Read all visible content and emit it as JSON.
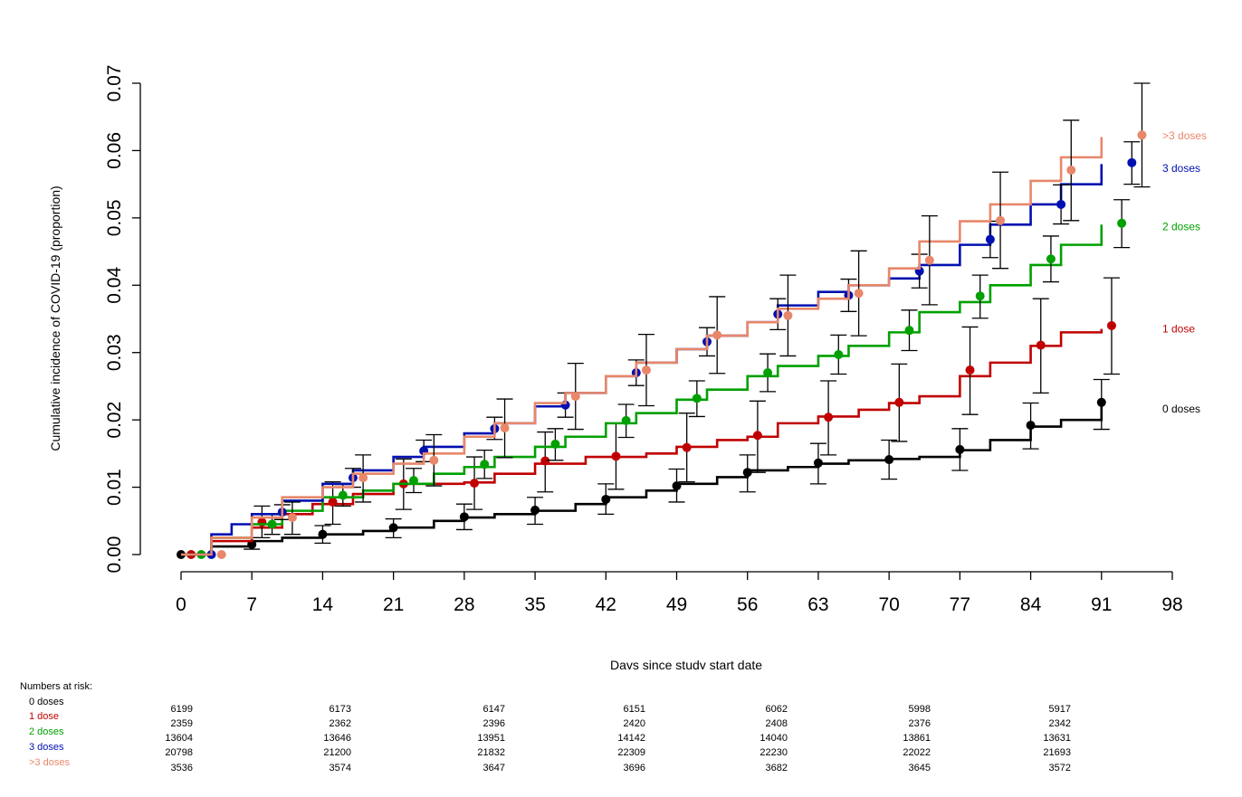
{
  "chart_data": {
    "type": "line",
    "title": "",
    "xlabel": "Days since study start date",
    "ylabel": "Cumulative incidence of COVID-19 (proportion)",
    "xlim": [
      0,
      98
    ],
    "ylim": [
      0,
      0.07
    ],
    "x_ticks": [
      "0",
      "7",
      "14",
      "21",
      "28",
      "35",
      "42",
      "49",
      "56",
      "63",
      "70",
      "77",
      "84",
      "91",
      "98"
    ],
    "y_ticks": [
      "0.00",
      "0.01",
      "0.02",
      "0.03",
      "0.04",
      "0.05",
      "0.06",
      "0.07"
    ],
    "grid": false,
    "legend_placement": "right (labels at line ends)",
    "series": [
      {
        "name": "0 doses",
        "color": "#000000",
        "line": [
          [
            0,
            0
          ],
          [
            3,
            0.0012
          ],
          [
            7,
            0.002
          ],
          [
            10,
            0.0025
          ],
          [
            14,
            0.003
          ],
          [
            18,
            0.0035
          ],
          [
            21,
            0.004
          ],
          [
            25,
            0.005
          ],
          [
            28,
            0.0055
          ],
          [
            31,
            0.006
          ],
          [
            35,
            0.0065
          ],
          [
            39,
            0.0075
          ],
          [
            42,
            0.0085
          ],
          [
            46,
            0.0095
          ],
          [
            49,
            0.0105
          ],
          [
            53,
            0.0115
          ],
          [
            56,
            0.0125
          ],
          [
            60,
            0.013
          ],
          [
            63,
            0.0135
          ],
          [
            66,
            0.014
          ],
          [
            70,
            0.0142
          ],
          [
            73,
            0.0145
          ],
          [
            77,
            0.0155
          ],
          [
            80,
            0.017
          ],
          [
            84,
            0.019
          ],
          [
            87,
            0.02
          ],
          [
            91,
            0.022
          ]
        ],
        "points": [
          {
            "x": 0,
            "y": 0
          },
          {
            "x": 7,
            "y": 0.0015,
            "lo": 0.0008,
            "hi": 0.0025
          },
          {
            "x": 14,
            "y": 0.003,
            "lo": 0.0017,
            "hi": 0.0043
          },
          {
            "x": 21,
            "y": 0.004,
            "lo": 0.0025,
            "hi": 0.0053
          },
          {
            "x": 28,
            "y": 0.0056,
            "lo": 0.0037,
            "hi": 0.0075
          },
          {
            "x": 35,
            "y": 0.0066,
            "lo": 0.0045,
            "hi": 0.0085
          },
          {
            "x": 42,
            "y": 0.0082,
            "lo": 0.006,
            "hi": 0.0105
          },
          {
            "x": 49,
            "y": 0.0102,
            "lo": 0.0078,
            "hi": 0.0127
          },
          {
            "x": 56,
            "y": 0.0122,
            "lo": 0.0093,
            "hi": 0.0148
          },
          {
            "x": 63,
            "y": 0.0136,
            "lo": 0.0105,
            "hi": 0.0165
          },
          {
            "x": 70,
            "y": 0.0141,
            "lo": 0.0112,
            "hi": 0.017
          },
          {
            "x": 77,
            "y": 0.0156,
            "lo": 0.0125,
            "hi": 0.0187
          },
          {
            "x": 84,
            "y": 0.0192,
            "lo": 0.0157,
            "hi": 0.0225
          },
          {
            "x": 91,
            "y": 0.0226,
            "lo": 0.0186,
            "hi": 0.026
          }
        ]
      },
      {
        "name": "1 dose",
        "color": "#c00000",
        "line": [
          [
            0,
            0
          ],
          [
            3,
            0.002
          ],
          [
            7,
            0.004
          ],
          [
            10,
            0.006
          ],
          [
            13,
            0.0075
          ],
          [
            17,
            0.009
          ],
          [
            21,
            0.0105
          ],
          [
            28,
            0.0107
          ],
          [
            31,
            0.012
          ],
          [
            35,
            0.0135
          ],
          [
            40,
            0.0145
          ],
          [
            46,
            0.015
          ],
          [
            49,
            0.016
          ],
          [
            53,
            0.017
          ],
          [
            56,
            0.0175
          ],
          [
            59,
            0.0195
          ],
          [
            63,
            0.0205
          ],
          [
            67,
            0.0215
          ],
          [
            70,
            0.0225
          ],
          [
            73,
            0.0235
          ],
          [
            77,
            0.0265
          ],
          [
            80,
            0.0285
          ],
          [
            84,
            0.031
          ],
          [
            87,
            0.033
          ],
          [
            91,
            0.0335
          ]
        ],
        "points": [
          {
            "x": 1,
            "y": 0
          },
          {
            "x": 8,
            "y": 0.0048,
            "lo": 0.0025,
            "hi": 0.0072
          },
          {
            "x": 15,
            "y": 0.0078,
            "lo": 0.0045,
            "hi": 0.0108
          },
          {
            "x": 22,
            "y": 0.0105,
            "lo": 0.0067,
            "hi": 0.0142
          },
          {
            "x": 29,
            "y": 0.0106,
            "lo": 0.0067,
            "hi": 0.0145
          },
          {
            "x": 36,
            "y": 0.0139,
            "lo": 0.0093,
            "hi": 0.0182
          },
          {
            "x": 43,
            "y": 0.0146,
            "lo": 0.0097,
            "hi": 0.0195
          },
          {
            "x": 50,
            "y": 0.0159,
            "lo": 0.0108,
            "hi": 0.021
          },
          {
            "x": 57,
            "y": 0.0177,
            "lo": 0.0122,
            "hi": 0.0228
          },
          {
            "x": 64,
            "y": 0.0204,
            "lo": 0.0148,
            "hi": 0.0258
          },
          {
            "x": 71,
            "y": 0.0226,
            "lo": 0.0168,
            "hi": 0.0283
          },
          {
            "x": 78,
            "y": 0.0274,
            "lo": 0.0208,
            "hi": 0.0338
          },
          {
            "x": 85,
            "y": 0.0311,
            "lo": 0.024,
            "hi": 0.038
          },
          {
            "x": 92,
            "y": 0.034,
            "lo": 0.0268,
            "hi": 0.0411
          }
        ]
      },
      {
        "name": "2 doses",
        "color": "#00a000",
        "line": [
          [
            0,
            0
          ],
          [
            3,
            0.0025
          ],
          [
            7,
            0.0045
          ],
          [
            10,
            0.0065
          ],
          [
            14,
            0.0085
          ],
          [
            18,
            0.0095
          ],
          [
            21,
            0.0105
          ],
          [
            25,
            0.012
          ],
          [
            28,
            0.013
          ],
          [
            31,
            0.0145
          ],
          [
            35,
            0.016
          ],
          [
            38,
            0.0175
          ],
          [
            42,
            0.0195
          ],
          [
            45,
            0.021
          ],
          [
            49,
            0.023
          ],
          [
            52,
            0.0245
          ],
          [
            56,
            0.0265
          ],
          [
            59,
            0.028
          ],
          [
            63,
            0.0295
          ],
          [
            66,
            0.031
          ],
          [
            70,
            0.033
          ],
          [
            73,
            0.036
          ],
          [
            77,
            0.0375
          ],
          [
            80,
            0.04
          ],
          [
            84,
            0.043
          ],
          [
            87,
            0.046
          ],
          [
            91,
            0.049
          ]
        ],
        "points": [
          {
            "x": 2,
            "y": 0
          },
          {
            "x": 9,
            "y": 0.0045,
            "lo": 0.003,
            "hi": 0.006
          },
          {
            "x": 16,
            "y": 0.0088,
            "lo": 0.0072,
            "hi": 0.0104
          },
          {
            "x": 23,
            "y": 0.011,
            "lo": 0.0092,
            "hi": 0.0128
          },
          {
            "x": 30,
            "y": 0.0134,
            "lo": 0.0113,
            "hi": 0.0155
          },
          {
            "x": 37,
            "y": 0.0164,
            "lo": 0.014,
            "hi": 0.0187
          },
          {
            "x": 44,
            "y": 0.0199,
            "lo": 0.0174,
            "hi": 0.0223
          },
          {
            "x": 51,
            "y": 0.0232,
            "lo": 0.0205,
            "hi": 0.0258
          },
          {
            "x": 58,
            "y": 0.027,
            "lo": 0.0242,
            "hi": 0.0298
          },
          {
            "x": 65,
            "y": 0.0297,
            "lo": 0.0268,
            "hi": 0.0326
          },
          {
            "x": 72,
            "y": 0.0333,
            "lo": 0.0303,
            "hi": 0.0363
          },
          {
            "x": 79,
            "y": 0.0384,
            "lo": 0.0351,
            "hi": 0.0415
          },
          {
            "x": 86,
            "y": 0.0439,
            "lo": 0.0405,
            "hi": 0.0473
          },
          {
            "x": 93,
            "y": 0.0492,
            "lo": 0.0456,
            "hi": 0.0527
          }
        ]
      },
      {
        "name": "3 doses",
        "color": "#0010b0",
        "line": [
          [
            0,
            0
          ],
          [
            3,
            0.003
          ],
          [
            5,
            0.0045
          ],
          [
            7,
            0.006
          ],
          [
            10,
            0.008
          ],
          [
            14,
            0.0105
          ],
          [
            17,
            0.0125
          ],
          [
            21,
            0.0145
          ],
          [
            24,
            0.016
          ],
          [
            28,
            0.018
          ],
          [
            31,
            0.0195
          ],
          [
            35,
            0.022
          ],
          [
            38,
            0.024
          ],
          [
            42,
            0.0265
          ],
          [
            45,
            0.0285
          ],
          [
            49,
            0.0305
          ],
          [
            52,
            0.0325
          ],
          [
            56,
            0.0345
          ],
          [
            59,
            0.037
          ],
          [
            63,
            0.039
          ],
          [
            66,
            0.04
          ],
          [
            70,
            0.041
          ],
          [
            73,
            0.043
          ],
          [
            77,
            0.046
          ],
          [
            80,
            0.049
          ],
          [
            84,
            0.052
          ],
          [
            87,
            0.055
          ],
          [
            91,
            0.058
          ]
        ],
        "points": [
          {
            "x": 3,
            "y": 0
          },
          {
            "x": 10,
            "y": 0.0063,
            "lo": 0.0052,
            "hi": 0.0074
          },
          {
            "x": 17,
            "y": 0.0114,
            "lo": 0.01,
            "hi": 0.0128
          },
          {
            "x": 24,
            "y": 0.0154,
            "lo": 0.0138,
            "hi": 0.017
          },
          {
            "x": 31,
            "y": 0.0187,
            "lo": 0.0171,
            "hi": 0.0204
          },
          {
            "x": 38,
            "y": 0.0222,
            "lo": 0.0204,
            "hi": 0.024
          },
          {
            "x": 45,
            "y": 0.027,
            "lo": 0.0251,
            "hi": 0.0289
          },
          {
            "x": 52,
            "y": 0.0316,
            "lo": 0.0295,
            "hi": 0.0337
          },
          {
            "x": 59,
            "y": 0.0357,
            "lo": 0.0334,
            "hi": 0.038
          },
          {
            "x": 66,
            "y": 0.0385,
            "lo": 0.0361,
            "hi": 0.0409
          },
          {
            "x": 73,
            "y": 0.0421,
            "lo": 0.0396,
            "hi": 0.0446
          },
          {
            "x": 80,
            "y": 0.0468,
            "lo": 0.0441,
            "hi": 0.0495
          },
          {
            "x": 87,
            "y": 0.052,
            "lo": 0.0491,
            "hi": 0.0549
          },
          {
            "x": 94,
            "y": 0.0582,
            "lo": 0.055,
            "hi": 0.0613
          }
        ]
      },
      {
        "name": ">3 doses",
        "color": "#e8876a",
        "line": [
          [
            0,
            0
          ],
          [
            3,
            0.0025
          ],
          [
            7,
            0.0055
          ],
          [
            10,
            0.0085
          ],
          [
            14,
            0.01
          ],
          [
            17,
            0.012
          ],
          [
            21,
            0.0135
          ],
          [
            24,
            0.015
          ],
          [
            28,
            0.0175
          ],
          [
            31,
            0.0195
          ],
          [
            35,
            0.0225
          ],
          [
            38,
            0.024
          ],
          [
            42,
            0.0265
          ],
          [
            45,
            0.0285
          ],
          [
            49,
            0.0305
          ],
          [
            52,
            0.0325
          ],
          [
            56,
            0.0345
          ],
          [
            59,
            0.0365
          ],
          [
            63,
            0.038
          ],
          [
            66,
            0.04
          ],
          [
            70,
            0.0425
          ],
          [
            73,
            0.0465
          ],
          [
            77,
            0.0495
          ],
          [
            80,
            0.052
          ],
          [
            84,
            0.0555
          ],
          [
            87,
            0.059
          ],
          [
            91,
            0.062
          ]
        ],
        "points": [
          {
            "x": 4,
            "y": 0
          },
          {
            "x": 11,
            "y": 0.0055,
            "lo": 0.003,
            "hi": 0.0078
          },
          {
            "x": 18,
            "y": 0.0114,
            "lo": 0.0078,
            "hi": 0.0148
          },
          {
            "x": 25,
            "y": 0.014,
            "lo": 0.0102,
            "hi": 0.0178
          },
          {
            "x": 32,
            "y": 0.0188,
            "lo": 0.0144,
            "hi": 0.0231
          },
          {
            "x": 39,
            "y": 0.0235,
            "lo": 0.0186,
            "hi": 0.0284
          },
          {
            "x": 46,
            "y": 0.0274,
            "lo": 0.0221,
            "hi": 0.0327
          },
          {
            "x": 53,
            "y": 0.0326,
            "lo": 0.0269,
            "hi": 0.0383
          },
          {
            "x": 60,
            "y": 0.0355,
            "lo": 0.0295,
            "hi": 0.0415
          },
          {
            "x": 67,
            "y": 0.0388,
            "lo": 0.0325,
            "hi": 0.0451
          },
          {
            "x": 74,
            "y": 0.0437,
            "lo": 0.0371,
            "hi": 0.0503
          },
          {
            "x": 81,
            "y": 0.0496,
            "lo": 0.0425,
            "hi": 0.0568
          },
          {
            "x": 88,
            "y": 0.0571,
            "lo": 0.0496,
            "hi": 0.0645
          },
          {
            "x": 95,
            "y": 0.0623,
            "lo": 0.0546,
            "hi": 0.07
          }
        ]
      }
    ]
  },
  "risk_table": {
    "title": "Numbers at risk:",
    "rows": [
      {
        "label": "0 doses",
        "color": "#000000",
        "values": [
          "6199",
          "6173",
          "6147",
          "6151",
          "6062",
          "5998",
          "5917"
        ]
      },
      {
        "label": "1 dose",
        "color": "#c00000",
        "values": [
          "2359",
          "2362",
          "2396",
          "2420",
          "2408",
          "2376",
          "2342"
        ]
      },
      {
        "label": "2 doses",
        "color": "#00a000",
        "values": [
          "13604",
          "13646",
          "13951",
          "14142",
          "14040",
          "13861",
          "13631"
        ]
      },
      {
        "label": "3 doses",
        "color": "#0010b0",
        "values": [
          "20798",
          "21200",
          "21832",
          "22309",
          "22230",
          "22022",
          "21693"
        ]
      },
      {
        "label": ">3 doses",
        "color": "#e8876a",
        "values": [
          "3536",
          "3574",
          "3647",
          "3696",
          "3682",
          "3645",
          "3572"
        ]
      }
    ]
  }
}
